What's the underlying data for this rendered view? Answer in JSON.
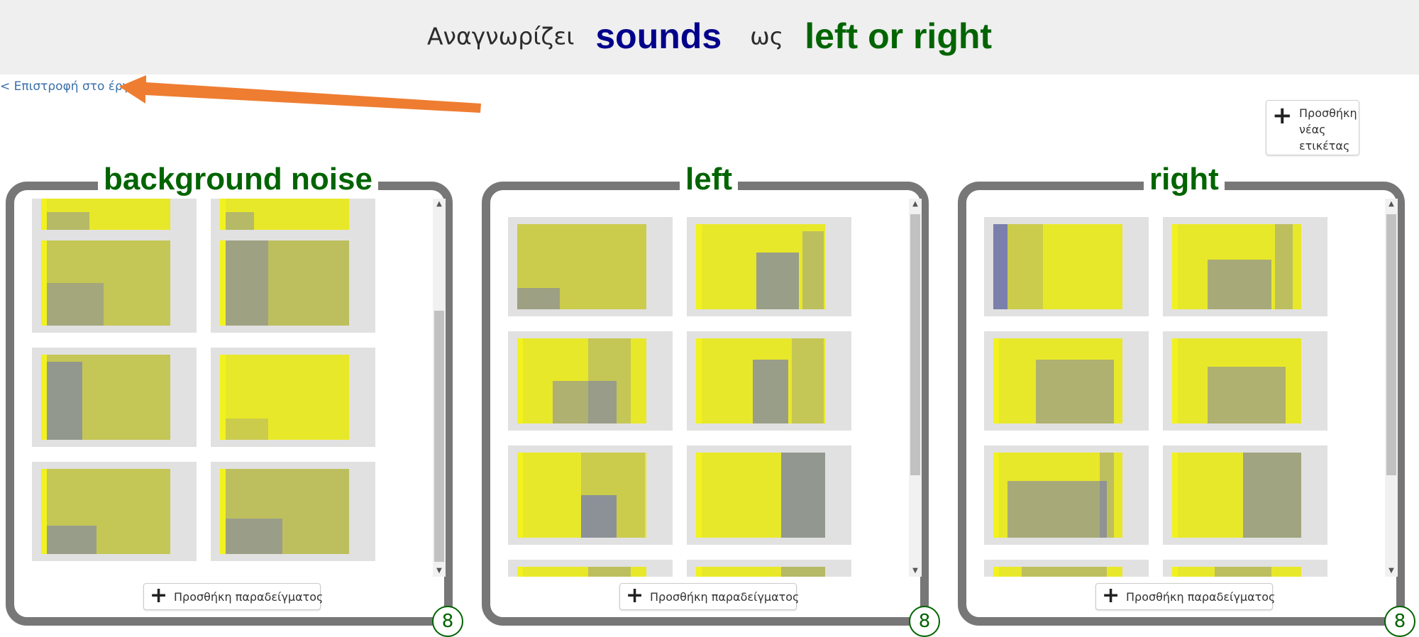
{
  "header": {
    "prefix": "Αναγνωρίζει",
    "input_type": "sounds",
    "connector": "ως",
    "labels_phrase": "left or right"
  },
  "back_link": "< Επιστροφή στο έργο",
  "add_label_button": "Προσθήκη νέας ετικέτας",
  "add_example_label": "Προσθήκη παραδείγματος",
  "colors": {
    "header_bg": "#efefef",
    "title_blue": "#00008b",
    "title_green": "#006400",
    "panel_border": "#777777",
    "arrow": "#ee7d31",
    "spectrogram_yellow": "#e8e82a",
    "spectrogram_blue": "#5860d6"
  },
  "icons": {
    "plus": "plus-icon",
    "arrow": "orange-arrow-annotation",
    "scroll_up": "scroll-up-arrow-icon",
    "scroll_down": "scroll-down-arrow-icon"
  },
  "panels": [
    {
      "title": "background noise",
      "count": "8"
    },
    {
      "title": "left",
      "count": "8"
    },
    {
      "title": "right",
      "count": "8"
    }
  ]
}
